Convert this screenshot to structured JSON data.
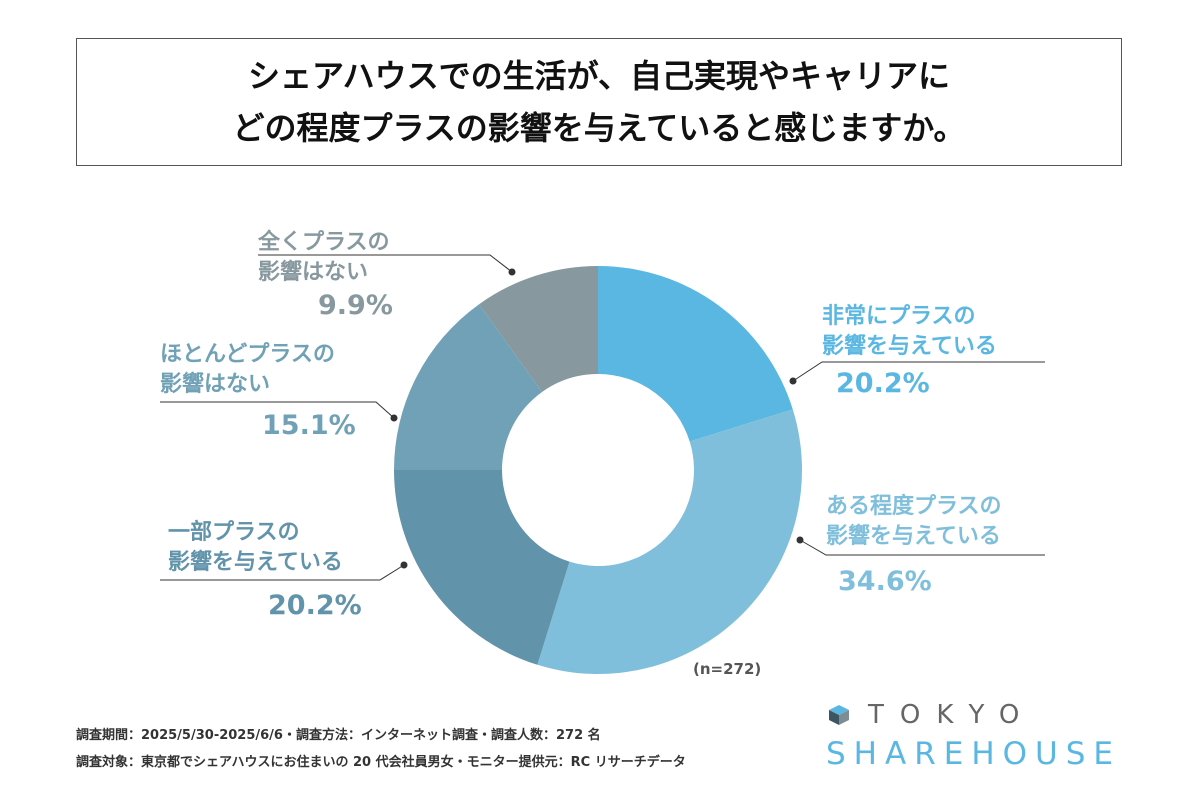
{
  "title": {
    "line1": "シェアハウスでの生活が、自己実現やキャリアに",
    "line2": "どの程度プラスの影響を与えていると感じますか。"
  },
  "chart_data": {
    "type": "pie",
    "subtype": "donut",
    "sample_size_label": "(n=272)",
    "series": [
      {
        "label_line1": "非常にプラスの",
        "label_line2": "影響を与えている",
        "value": 20.2,
        "value_label": "20.2%",
        "color": "#5ab7e2"
      },
      {
        "label_line1": "ある程度プラスの",
        "label_line2": "影響を与えている",
        "value": 34.6,
        "value_label": "34.6%",
        "color": "#80bfdc"
      },
      {
        "label_line1": "一部プラスの",
        "label_line2": "影響を与えている",
        "value": 20.2,
        "value_label": "20.2%",
        "color": "#6193ab"
      },
      {
        "label_line1": "ほとんどプラスの",
        "label_line2": "影響はない",
        "value": 15.1,
        "value_label": "15.1%",
        "color": "#70a1b6"
      },
      {
        "label_line1": "全くプラスの",
        "label_line2": "影響はない",
        "value": 9.9,
        "value_label": "9.9%",
        "color": "#87999f"
      }
    ],
    "label_colors": [
      "#5ab7e2",
      "#80bfdc",
      "#6193ab",
      "#70a1b6",
      "#87999f"
    ]
  },
  "notes": {
    "line1": "調査期間：2025/5/30-2025/6/6・調査方法：インターネット調査・調査人数：272 名",
    "line2": "調査対象：東京都でシェアハウスにお住まいの 20 代会社員男女・モニター提供元：RC リサーチデータ"
  },
  "logo": {
    "top": "TOKYO",
    "bottom": "SHAREHOUSE",
    "icon_color": "#5ab7e2"
  }
}
